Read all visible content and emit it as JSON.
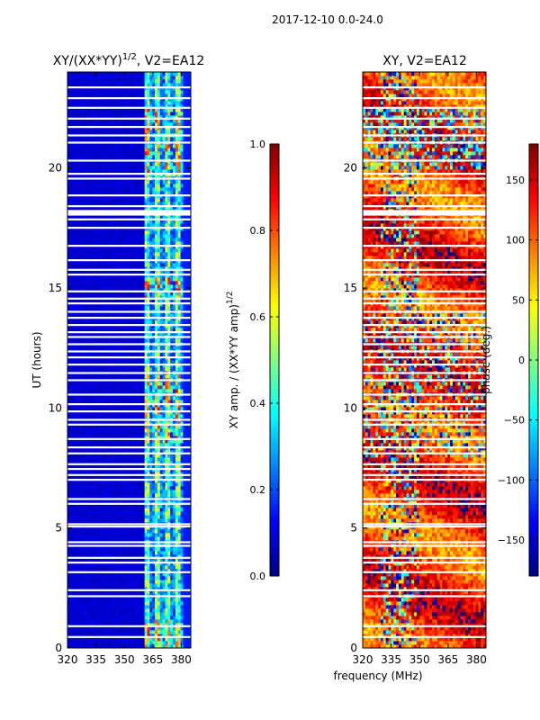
{
  "chart_data": {
    "suptitle": "2017-12-10 0.0-24.0",
    "xlabel": "frequency (MHz)",
    "type": "heatmap",
    "panels": [
      {
        "id": "amp",
        "title": "XY/(XX*YY)",
        "title_sup": "1/2",
        "title_suffix": ", V2=EA12",
        "ylabel": "UT (hours)",
        "xlim": [
          320,
          385
        ],
        "ylim": [
          0,
          24
        ],
        "xticks": [
          320,
          335,
          350,
          365,
          380
        ],
        "yticks": [
          0,
          5,
          10,
          15,
          20
        ],
        "colorbar": {
          "range": [
            0.0,
            1.0
          ],
          "ticks": [
            0.0,
            0.2,
            0.4,
            0.6,
            0.8,
            1.0
          ],
          "tick_labels": [
            "0.0",
            "0.2",
            "0.4",
            "0.6",
            "0.8",
            "1.0"
          ],
          "label": "XY amp. / (XX*YY amp)",
          "label_sup": "1/2"
        },
        "features": {
          "low_band_mhz": [
            320,
            361
          ],
          "low_band_value": 0.06,
          "active_band_mhz": [
            361,
            382
          ],
          "active_band_value_range": [
            0.25,
            0.9
          ],
          "bright_hours": [
            [
              0.0,
              1.2
            ],
            [
              8.5,
              11.5
            ],
            [
              14.5,
              15.5
            ],
            [
              19.5,
              22.5
            ]
          ]
        }
      },
      {
        "id": "phase",
        "title": "XY, V2=EA12",
        "ylabel": "phase (deg.)",
        "xlim": [
          320,
          385
        ],
        "ylim": [
          0,
          24
        ],
        "xticks": [
          320,
          335,
          350,
          365,
          380
        ],
        "yticks": [
          0,
          5,
          10,
          15,
          20
        ],
        "colorbar": {
          "range": [
            -180,
            180
          ],
          "ticks": [
            -150,
            -100,
            -50,
            0,
            50,
            100,
            150
          ],
          "tick_labels": [
            "−150",
            "−100",
            "−50",
            "0",
            "50",
            "100",
            "150"
          ],
          "label": "phase (deg.)"
        },
        "features": {
          "dominant_phase_deg": [
            90,
            180
          ],
          "scattered_band_mhz": [
            330,
            350
          ],
          "scattered_hours": [
            8,
            14
          ]
        }
      }
    ],
    "flagged_hours": [
      0.45,
      0.9,
      2.15,
      2.4,
      3.15,
      3.55,
      3.75,
      4.25,
      4.4,
      5.05,
      5.15,
      6.0,
      6.2,
      7.0,
      7.2,
      7.45,
      7.65,
      8.1,
      8.35,
      8.7,
      9.3,
      9.5,
      9.85,
      10.15,
      10.55,
      11.15,
      11.45,
      11.8,
      12.1,
      12.35,
      12.65,
      12.95,
      13.15,
      13.45,
      13.75,
      14.0,
      14.35,
      14.55,
      14.85,
      15.55,
      15.75,
      16.15,
      16.75,
      17.5,
      17.85,
      18.05,
      18.4,
      18.85,
      19.55,
      19.75,
      20.3,
      21.05,
      21.35,
      21.7,
      22.05,
      22.5,
      22.9,
      23.35
    ]
  }
}
